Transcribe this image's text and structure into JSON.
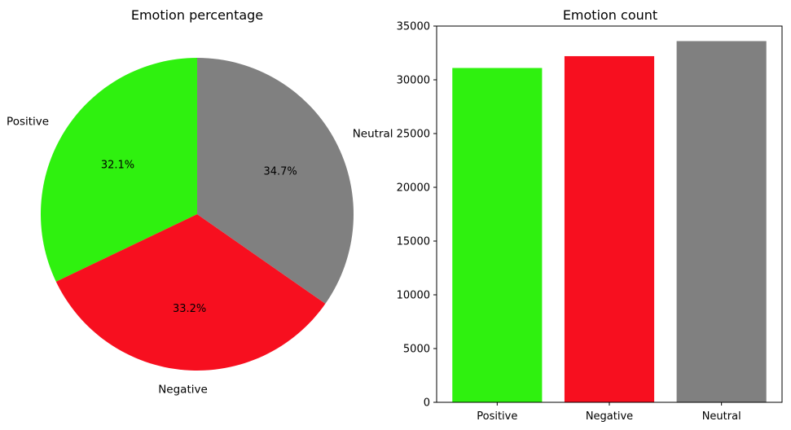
{
  "chart_data": [
    {
      "type": "pie",
      "title": "Emotion percentage",
      "labels": [
        "Positive",
        "Negative",
        "Neutral"
      ],
      "values": [
        32.1,
        33.2,
        34.7
      ],
      "value_labels": [
        "32.1%",
        "33.2%",
        "34.7%"
      ],
      "colors": [
        "#2ff10f",
        "#f70f1f",
        "#808080"
      ],
      "start_angle_deg": 90,
      "direction": "counterclockwise"
    },
    {
      "type": "bar",
      "title": "Emotion count",
      "categories": [
        "Positive",
        "Negative",
        "Neutral"
      ],
      "values": [
        31100,
        32200,
        33600
      ],
      "colors": [
        "#2ff10f",
        "#f70f1f",
        "#808080"
      ],
      "ylim": [
        0,
        35000
      ],
      "yticks": [
        0,
        5000,
        10000,
        15000,
        20000,
        25000,
        30000,
        35000
      ],
      "grid": false
    }
  ]
}
